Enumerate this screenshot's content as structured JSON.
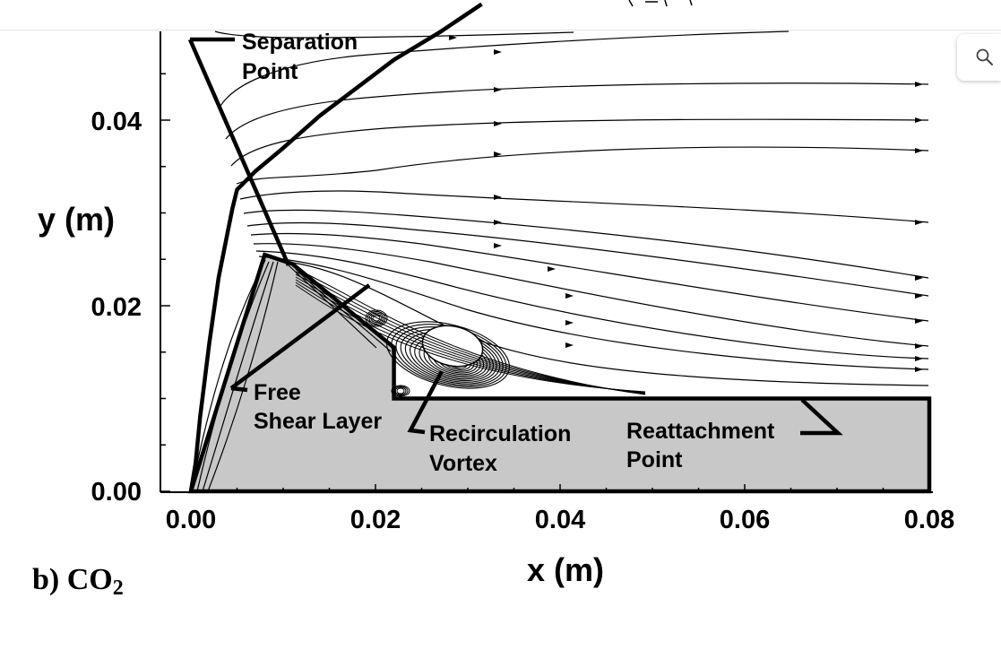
{
  "app": {
    "search_icon": "search-icon"
  },
  "figure": {
    "caption": {
      "panel": "b)",
      "species_main": "CO",
      "species_sub": "2"
    },
    "annotations": {
      "separation": [
        "Separation",
        "Point"
      ],
      "free_shear": [
        "Free",
        "Shear Layer"
      ],
      "recirculation": [
        "Recirculation",
        "Vortex"
      ],
      "reattachment": [
        "Reattachment",
        "Point"
      ]
    },
    "colors": {
      "body_fill": "#c8c8c8",
      "ink": "#000000"
    }
  },
  "chart_data": {
    "type": "line",
    "xlabel": "x (m)",
    "ylabel": "y (m)",
    "x_ticks": [
      "0.00",
      "0.02",
      "0.04",
      "0.06",
      "0.08"
    ],
    "y_ticks": [
      "0.00",
      "0.02",
      "0.04"
    ],
    "xlim": [
      -0.0015,
      0.08
    ],
    "ylim": [
      0,
      0.05
    ],
    "grid": false,
    "series": [
      {
        "role": "bow-shock",
        "x": [
          0.0,
          0.0005,
          0.001,
          0.002,
          0.003,
          0.004,
          0.0045,
          0.005,
          0.007,
          0.01,
          0.014,
          0.018,
          0.022,
          0.027,
          0.0315
        ],
        "y": [
          0.0,
          0.003,
          0.008,
          0.016,
          0.023,
          0.028,
          0.0305,
          0.0325,
          0.0345,
          0.037,
          0.0405,
          0.0435,
          0.0465,
          0.0495,
          0.0525
        ]
      },
      {
        "role": "body-surface",
        "x": [
          0.0,
          0.008,
          0.011,
          0.022,
          0.022,
          0.08,
          0.08,
          0.0
        ],
        "y": [
          0.0,
          0.0255,
          0.0245,
          0.0155,
          0.01,
          0.01,
          0.0,
          0.0
        ]
      }
    ]
  }
}
